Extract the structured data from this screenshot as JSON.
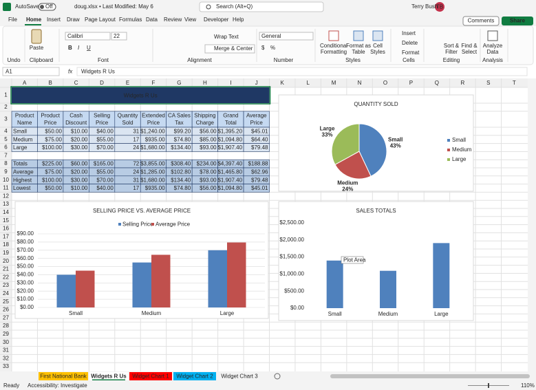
{
  "titlebar": {
    "autosave": "AutoSave",
    "toggle": "Off",
    "filename": "doug.xlsx • Last Modified: May 6",
    "search": "Search (Alt+Q)",
    "user": "Terry Bush",
    "initials": "TB"
  },
  "menu": {
    "tabs": [
      "File",
      "Home",
      "Insert",
      "Draw",
      "Page Layout",
      "Formulas",
      "Data",
      "Review",
      "View",
      "Developer",
      "Help"
    ],
    "comments": "Comments",
    "share": "Share"
  },
  "ribbon": {
    "paste": "Paste",
    "font": "Calibri",
    "font_size": "22",
    "font_styles": [
      "B",
      "I",
      "U"
    ],
    "wrap_text": "Wrap Text",
    "merge_center": "Merge & Center",
    "number_format": "General",
    "number_buttons": [
      "$",
      "%"
    ],
    "conditional_formatting": [
      "Conditional",
      "Formatting"
    ],
    "format_as_table": [
      "Format as",
      "Table"
    ],
    "cell_styles": [
      "Cell",
      "Styles"
    ],
    "insert": "Insert",
    "delete": "Delete",
    "format": "Format",
    "sort_filter": [
      "Sort &",
      "Filter"
    ],
    "find_select": [
      "Find &",
      "Select"
    ],
    "analyze_data": [
      "Analyze",
      "Data"
    ],
    "group_labels": [
      "Undo",
      "Clipboard",
      "Font",
      "Alignment",
      "Number",
      "Styles",
      "Cells",
      "Editing",
      "Analysis"
    ]
  },
  "formula_bar": {
    "name_box": "A1",
    "fx": "fx",
    "content": "Widgets R Us"
  },
  "sheet": {
    "columns": [
      "A",
      "B",
      "C",
      "D",
      "E",
      "F",
      "G",
      "H",
      "I",
      "J",
      "K",
      "L",
      "M",
      "N",
      "O",
      "P",
      "Q",
      "R",
      "S",
      "T"
    ],
    "rows": [
      1,
      2,
      3,
      4,
      5,
      6,
      7,
      8,
      9,
      10,
      11,
      12,
      13,
      14,
      15,
      16,
      17,
      18,
      19,
      20,
      21,
      22,
      23,
      24,
      25,
      26,
      27,
      28,
      29,
      30,
      31,
      32,
      33
    ],
    "title": "Widgets R Us",
    "table": {
      "header": [
        [
          "Product",
          "Name"
        ],
        [
          "Product",
          "Price"
        ],
        [
          "Cash",
          "Discount"
        ],
        [
          "Selling",
          "Price"
        ],
        [
          "Quantity",
          "Sold"
        ],
        [
          "Extended",
          "Price"
        ],
        [
          "CA Sales",
          "Tax"
        ],
        [
          "Shipping",
          "Charge"
        ],
        [
          "Grand",
          "Total"
        ],
        [
          "Average",
          "Price"
        ]
      ],
      "rows": [
        [
          "Small",
          "$50.00",
          "$10.00",
          "$40.00",
          "31",
          "$1,240.00",
          "$99.20",
          "$56.00",
          "$1,395.20",
          "$45.01"
        ],
        [
          "Medium",
          "$75.00",
          "$20.00",
          "$55.00",
          "17",
          "$935.00",
          "$74.80",
          "$85.00",
          "$1,094.80",
          "$64.40"
        ],
        [
          "Large",
          "$100.00",
          "$30.00",
          "$70.00",
          "24",
          "$1,680.00",
          "$134.40",
          "$93.00",
          "$1,907.40",
          "$79.48"
        ],
        [
          "Totals",
          "$225.00",
          "$60.00",
          "$165.00",
          "72",
          "$3,855.00",
          "$308.40",
          "$234.00",
          "$4,397.40",
          "$188.88"
        ],
        [
          "Average",
          "$75.00",
          "$20.00",
          "$55.00",
          "24",
          "$1,285.00",
          "$102.80",
          "$78.00",
          "$1,465.80",
          "$62.96"
        ],
        [
          "Highest",
          "$100.00",
          "$30.00",
          "$70.00",
          "31",
          "$1,680.00",
          "$134.40",
          "$93.00",
          "$1,907.40",
          "$79.48"
        ],
        [
          "Lowest",
          "$50.00",
          "$10.00",
          "$40.00",
          "17",
          "$935.00",
          "$74.80",
          "$56.00",
          "$1,094.80",
          "$45.01"
        ]
      ]
    }
  },
  "chart_data": [
    {
      "type": "pie",
      "title": "QUANTITY SOLD",
      "categories": [
        "Small",
        "Medium",
        "Large"
      ],
      "values": [
        43,
        24,
        33
      ],
      "value_labels": [
        "43%",
        "24%",
        "33%"
      ],
      "colors": [
        "#4f81bd",
        "#c0504d",
        "#9bbb59"
      ],
      "legend": "right"
    },
    {
      "type": "bar",
      "title": "SELLING PRICE VS. AVERAGE PRICE",
      "categories": [
        "Small",
        "Medium",
        "Large"
      ],
      "series": [
        {
          "name": "Selling Price",
          "color": "#4f81bd",
          "values": [
            40,
            55,
            70
          ]
        },
        {
          "name": "Average Price",
          "color": "#c0504d",
          "values": [
            45.01,
            64.4,
            79.48
          ]
        }
      ],
      "ylim": [
        0,
        90
      ],
      "yticks": [
        {
          "value": 0,
          "label": "$0.00"
        },
        {
          "value": 10,
          "label": "$10.00"
        },
        {
          "value": 20,
          "label": "$20.00"
        },
        {
          "value": 30,
          "label": "$30.00"
        },
        {
          "value": 40,
          "label": "$40.00"
        },
        {
          "value": 50,
          "label": "$50.00"
        },
        {
          "value": 60,
          "label": "$60.00"
        },
        {
          "value": 70,
          "label": "$70.00"
        },
        {
          "value": 80,
          "label": "$80.00"
        },
        {
          "value": 90,
          "label": "$90.00"
        }
      ],
      "grid": true,
      "legend": "top"
    },
    {
      "type": "bar",
      "title": "SALES TOTALS",
      "categories": [
        "Small",
        "Medium",
        "Large"
      ],
      "values": [
        1395.2,
        1094.8,
        1907.4
      ],
      "color": "#4f81bd",
      "ylim": [
        0,
        2500
      ],
      "yticks": [
        {
          "value": 0,
          "label": "$0.00"
        },
        {
          "value": 500,
          "label": "$500.00"
        },
        {
          "value": 1000,
          "label": "$1,000.00"
        },
        {
          "value": 1500,
          "label": "$1,500.00"
        },
        {
          "value": 2000,
          "label": "$2,000.00"
        },
        {
          "value": 2500,
          "label": "$2,500.00"
        }
      ],
      "grid": false,
      "annotations": [
        "Plot Area"
      ]
    }
  ],
  "sheet_tabs": [
    "First National Bank",
    "Widgets R Us",
    "Widget Chart 1",
    "Widget Chart 2",
    "Widget Chart 3"
  ],
  "status": {
    "ready": "Ready",
    "accessibility": "Accessibility: Investigate",
    "zoom": "110%"
  }
}
